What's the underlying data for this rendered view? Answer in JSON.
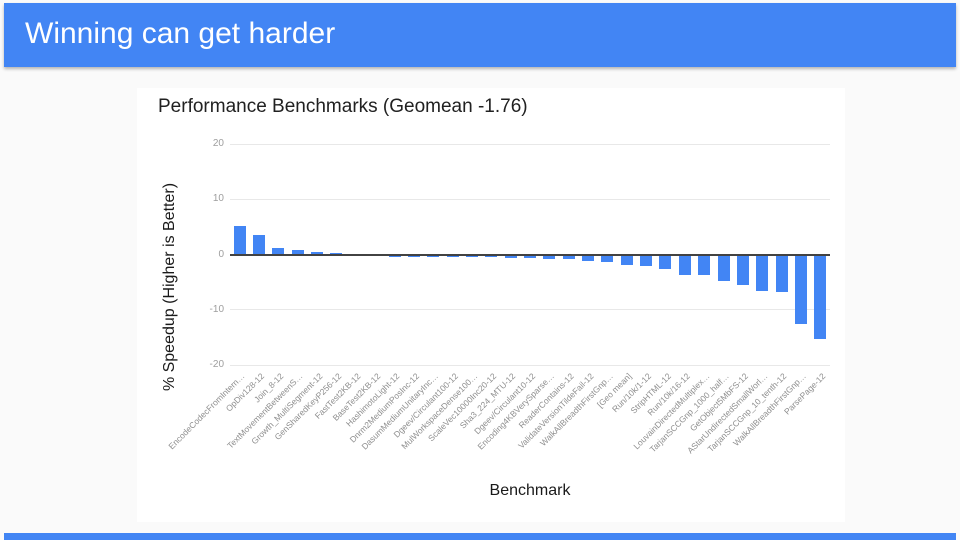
{
  "slide": {
    "title": "Winning can get harder"
  },
  "theme": {
    "accent": "#4285f4",
    "page_bg": "#fafafa",
    "card_bg": "#ffffff",
    "bar_color": "#4285f4",
    "grid_color": "#e8e8e8",
    "zero_line_color": "#424242",
    "tick_text_color": "#9e9e9e",
    "title_text_color": "#212121"
  },
  "chart_data": {
    "type": "bar",
    "title": "Performance Benchmarks (Geomean -1.76)",
    "xlabel": "Benchmark",
    "ylabel": "% Speedup (Higher is Better)",
    "ylim": [
      -20,
      20
    ],
    "yticks": [
      20,
      10,
      0,
      -10,
      -20
    ],
    "grid": true,
    "legend": "none",
    "bar_color": "#4285f4",
    "categories": [
      "EncodeCodecFromIntern…",
      "OpDiv128-12",
      "Join_8-12",
      "TextMovementBetweenS…",
      "Growth_MultiSegment-12",
      "GenSharedKeyP256-12",
      "FastTest2KB-12",
      "BaseTest2KB-12",
      "HashimotoLight-12",
      "Dnrm2MediumPosInc-12",
      "DasumMediumUnitaryInc…",
      "Dgeev/Circulant100-12",
      "MulWorkspaceDense100…",
      "ScaleVec10000Inc20-12",
      "Sha3_224_MTU-12",
      "Dgeev/Circulant10-12",
      "Encoding4KBVerySparse…",
      "ReaderContains-12",
      "ValidateVersionTildeFail-12",
      "WalkAllBreadthFirstGnp…",
      "[Geo mean]",
      "Run/10k/1-12",
      "StripHTML-12",
      "Run/10k/16-12",
      "LouvainDirectedMultiplex…",
      "TarjanSCCGnp_1000_half…",
      "GetObject5MbFS-12",
      "AStarUndirectedSmallWorl…",
      "TarjanSCCGnp_10_tenth-12",
      "WalkAllBreadthFirstGnp…",
      "ParsePage-12"
    ],
    "values": [
      5.2,
      3.5,
      1.1,
      0.8,
      0.5,
      0.25,
      0.05,
      0.05,
      -0.05,
      -0.1,
      -0.1,
      -0.1,
      -0.15,
      -0.2,
      -0.4,
      -0.5,
      -0.55,
      -0.65,
      -1.0,
      -1.2,
      -1.76,
      -1.9,
      -2.4,
      -3.5,
      -3.5,
      -4.6,
      -5.3,
      -6.4,
      -6.6,
      -12.4,
      -15.2
    ]
  }
}
